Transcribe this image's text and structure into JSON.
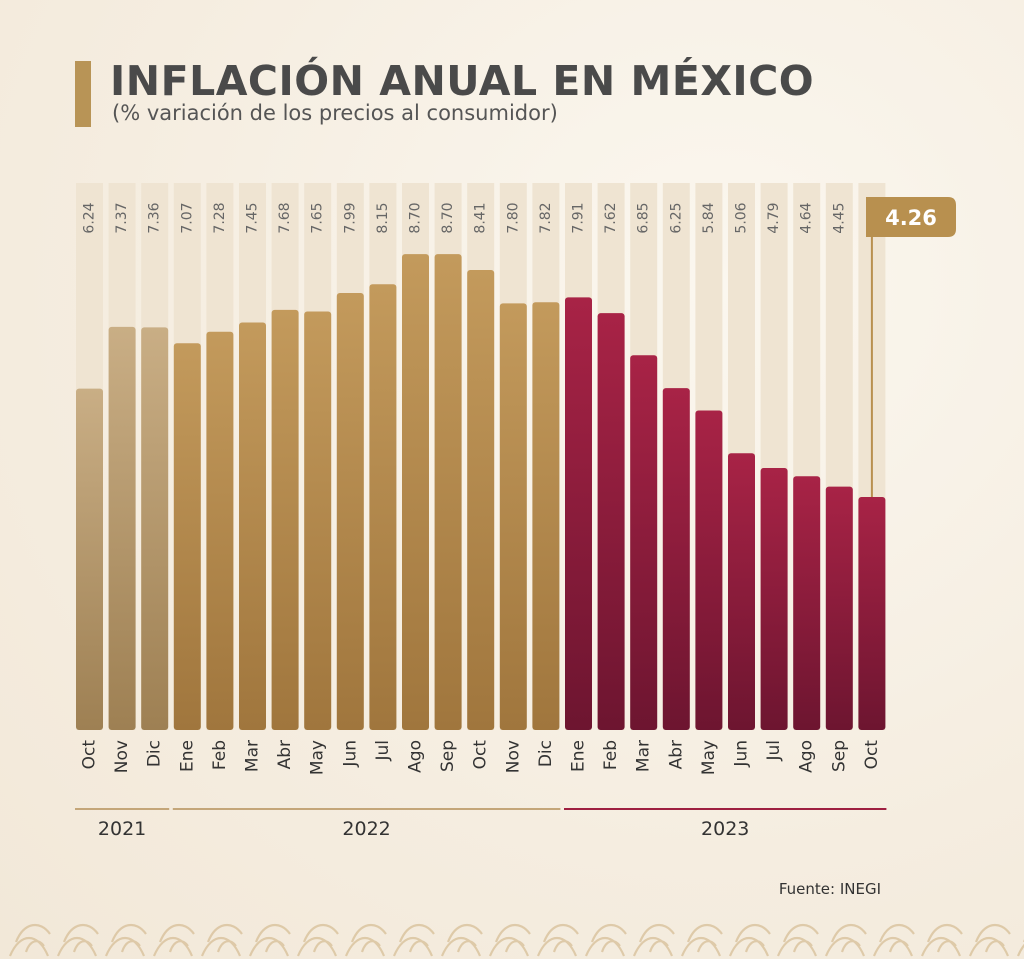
{
  "header": {
    "title": "INFLACIÓN ANUAL EN MÉXICO",
    "subtitle": "(% variación de los precios al consumidor)"
  },
  "source": "Fuente: INEGI",
  "callout": "4.26",
  "colors": {
    "gold": "#b8904f",
    "gold_light": "#c4a679",
    "red": "#9e1f40",
    "column_bg": "#ede2d0",
    "accent": "#b89456"
  },
  "chart_data": {
    "type": "bar",
    "title": "INFLACIÓN ANUAL EN MÉXICO",
    "subtitle": "(% variación de los precios al consumidor)",
    "categories": [
      "Oct",
      "Nov",
      "Dic",
      "Ene",
      "Feb",
      "Mar",
      "Abr",
      "May",
      "Jun",
      "Jul",
      "Ago",
      "Sep",
      "Oct",
      "Nov",
      "Dic",
      "Ene",
      "Feb",
      "Mar",
      "Abr",
      "May",
      "Jun",
      "Jul",
      "Ago",
      "Sep",
      "Oct"
    ],
    "values": [
      6.24,
      7.37,
      7.36,
      7.07,
      7.28,
      7.45,
      7.68,
      7.65,
      7.99,
      8.15,
      8.7,
      8.7,
      8.41,
      7.8,
      7.82,
      7.91,
      7.62,
      6.85,
      6.25,
      5.84,
      5.06,
      4.79,
      4.64,
      4.45,
      4.26
    ],
    "value_labels": [
      "6.24",
      "7.37",
      "7.36",
      "7.07",
      "7.28",
      "7.45",
      "7.68",
      "7.65",
      "7.99",
      "8.15",
      "8.70",
      "8.70",
      "8.41",
      "7.80",
      "7.82",
      "7.91",
      "7.62",
      "6.85",
      "6.25",
      "5.84",
      "5.06",
      "4.79",
      "4.64",
      "4.45",
      ""
    ],
    "years": [
      {
        "label": "2021",
        "start": 0,
        "end": 2
      },
      {
        "label": "2022",
        "start": 3,
        "end": 14
      },
      {
        "label": "2023",
        "start": 15,
        "end": 24
      }
    ],
    "ylim": [
      0,
      10
    ],
    "xlabel": "",
    "ylabel": "",
    "grid": false,
    "legend": "none"
  }
}
